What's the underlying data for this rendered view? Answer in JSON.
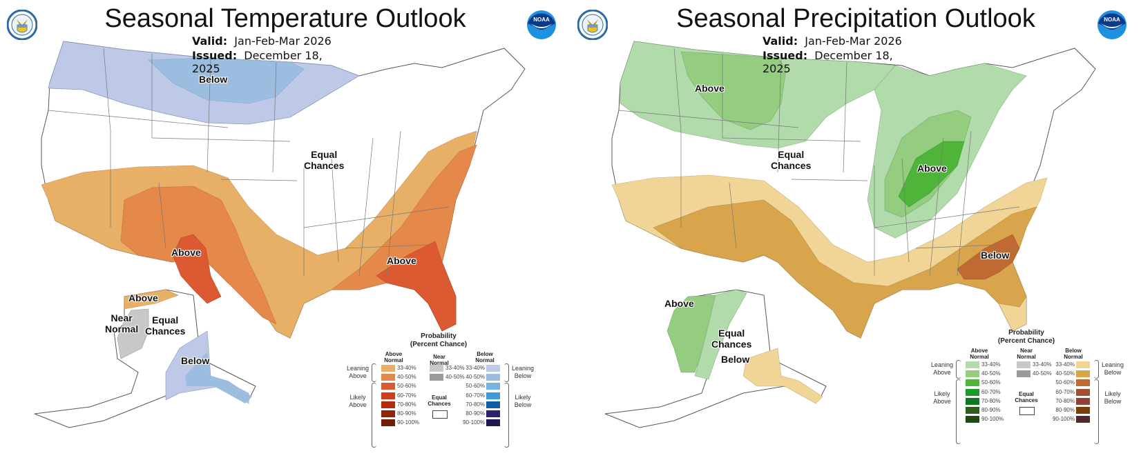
{
  "panels": [
    {
      "title": "Seasonal Temperature Outlook",
      "valid_label": "Valid:",
      "valid_value": "Jan-Feb-Mar 2026",
      "issued_label": "Issued:",
      "issued_value": "December 18, 2025",
      "map_labels": {
        "north": "Below",
        "center": [
          "Equal",
          "Chances"
        ],
        "southwest": "Above",
        "southeast": "Above",
        "ak_above": "Above",
        "ak_near": [
          "Near",
          "Normal"
        ],
        "ak_equal": [
          "Equal",
          "Chances"
        ],
        "ak_below": "Below"
      },
      "legend": {
        "title": [
          "Probability",
          "(Percent Chance)"
        ],
        "above_head": [
          "Above",
          "Normal"
        ],
        "near_head": [
          "Near",
          "Normal"
        ],
        "below_head": [
          "Below",
          "Normal"
        ],
        "leaning_above": [
          "Leaning",
          "Above"
        ],
        "likely_above": [
          "Likely",
          "Above"
        ],
        "leaning_below": [
          "Leaning",
          "Below"
        ],
        "likely_below": [
          "Likely",
          "Below"
        ],
        "equal_chances": [
          "Equal",
          "Chances"
        ],
        "ranges": [
          "33-40%",
          "40-50%",
          "50-60%",
          "60-70%",
          "70-80%",
          "80-90%",
          "90-100%"
        ],
        "near_ranges": [
          "33-40%",
          "40-50%"
        ],
        "above_colors": [
          "#e8b066",
          "#e5894a",
          "#dc5a32",
          "#cf3c20",
          "#b32d0c",
          "#8e2508",
          "#6e1e05"
        ],
        "near_colors": [
          "#c8c8c8",
          "#9a9a9a"
        ],
        "below_colors": [
          "#bdc9e6",
          "#9bbde0",
          "#74b2e2",
          "#3d9bd8",
          "#0f5ea6",
          "#2b2170",
          "#1e1850"
        ]
      }
    },
    {
      "title": "Seasonal Precipitation Outlook",
      "valid_label": "Valid:",
      "valid_value": "Jan-Feb-Mar 2026",
      "issued_label": "Issued:",
      "issued_value": "December 18, 2025",
      "map_labels": {
        "north": "Above",
        "center": [
          "Equal",
          "Chances"
        ],
        "midwest": "Above",
        "southeast": "Below",
        "ak_above": "Above",
        "ak_equal": [
          "Equal",
          "Chances"
        ],
        "ak_below": "Below"
      },
      "legend": {
        "title": [
          "Probability",
          "(Percent Chance)"
        ],
        "above_head": [
          "Above",
          "Normal"
        ],
        "near_head": [
          "Near",
          "Normal"
        ],
        "below_head": [
          "Below",
          "Normal"
        ],
        "leaning_above": [
          "Leaning",
          "Above"
        ],
        "likely_above": [
          "Likely",
          "Above"
        ],
        "leaning_below": [
          "Leaning",
          "Below"
        ],
        "likely_below": [
          "Likely",
          "Below"
        ],
        "equal_chances": [
          "Equal",
          "Chances"
        ],
        "ranges": [
          "33-40%",
          "40-50%",
          "50-60%",
          "60-70%",
          "70-80%",
          "80-90%",
          "90-100%"
        ],
        "near_ranges": [
          "33-40%",
          "40-50%"
        ],
        "above_colors": [
          "#b2dbab",
          "#94cc80",
          "#4eb43a",
          "#1a9a2a",
          "#0d7a1d",
          "#2c5e1a",
          "#214a12"
        ],
        "near_colors": [
          "#c8c8c8",
          "#9a9a9a"
        ],
        "below_colors": [
          "#f0d596",
          "#d8a54d",
          "#c06a33",
          "#a2502f",
          "#93403a",
          "#7a3f08",
          "#4e2b2a"
        ]
      }
    }
  ],
  "logos": {
    "doc": "DEPARTMENT OF COMMERCE",
    "noaa": "NOAA"
  }
}
